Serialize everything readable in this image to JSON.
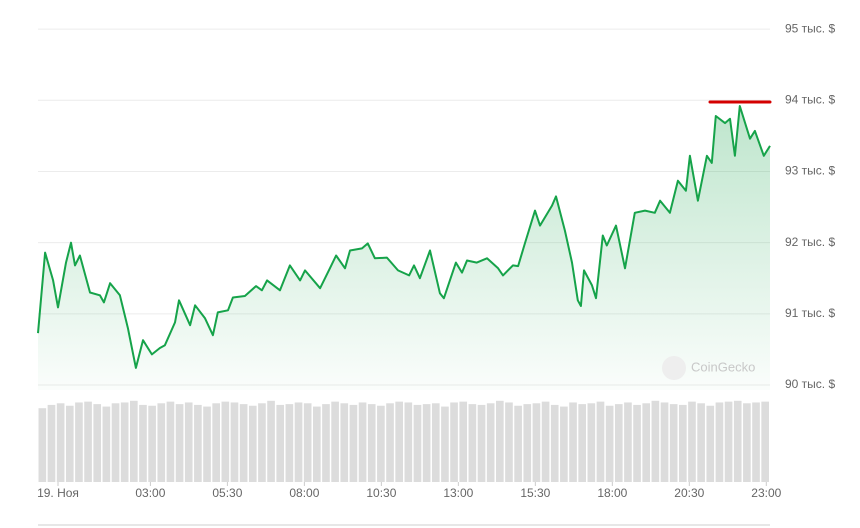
{
  "chart_data": {
    "type": "line",
    "color": "#16a34a",
    "watermark": "CoinGecko",
    "x": [
      -0.65,
      -0.42,
      -0.16,
      0,
      0.26,
      0.42,
      0.55,
      0.71,
      1.04,
      1.36,
      1.49,
      1.69,
      2.01,
      2.27,
      2.53,
      2.76,
      3.05,
      3.31,
      3.47,
      3.8,
      3.93,
      4.29,
      4.45,
      4.77,
      5.03,
      5.19,
      5.52,
      5.68,
      6.07,
      6.43,
      6.62,
      6.79,
      7.21,
      7.53,
      7.86,
      8.02,
      8.51,
      8.83,
      9.03,
      9.32,
      9.48,
      9.87,
      10.06,
      10.29,
      10.68,
      11.04,
      11.4,
      11.56,
      11.75,
      12.08,
      12.4,
      12.53,
      12.92,
      13.12,
      13.28,
      13.6,
      13.93,
      14.29,
      14.45,
      14.77,
      14.94,
      15.16,
      15.49,
      15.65,
      16.04,
      16.17,
      16.46,
      16.69,
      16.88,
      16.98,
      17.08,
      17.34,
      17.47,
      17.69,
      17.82,
      18.12,
      18.41,
      18.73,
      19.06,
      19.38,
      19.55,
      19.87,
      20.13,
      20.39,
      20.52,
      20.78,
      21.07,
      21.23,
      21.36,
      21.66,
      21.82,
      21.98,
      22.14,
      22.47,
      22.63,
      22.92,
      23.12
    ],
    "values": [
      90730,
      91860,
      91470,
      91090,
      91720,
      92000,
      91680,
      91820,
      91300,
      91260,
      91160,
      91430,
      91260,
      90800,
      90240,
      90630,
      90430,
      90520,
      90560,
      90880,
      91190,
      90840,
      91120,
      90940,
      90700,
      91020,
      91050,
      91230,
      91250,
      91390,
      91330,
      91470,
      91330,
      91680,
      91470,
      91610,
      91360,
      91640,
      91820,
      91640,
      91890,
      91920,
      91990,
      91780,
      91790,
      91610,
      91540,
      91680,
      91500,
      91890,
      91290,
      91220,
      91720,
      91580,
      91750,
      91720,
      91780,
      91640,
      91540,
      91680,
      91670,
      91990,
      92450,
      92240,
      92520,
      92650,
      92170,
      91720,
      91190,
      91110,
      91610,
      91400,
      91220,
      92100,
      91960,
      92240,
      91640,
      92420,
      92450,
      92420,
      92590,
      92420,
      92870,
      92730,
      93220,
      92590,
      93220,
      93120,
      93780,
      93680,
      93740,
      93220,
      93920,
      93460,
      93570,
      93220,
      93360
    ],
    "xlim": [
      -0.65,
      23.12
    ],
    "xticks": [
      {
        "value": 0,
        "label": "19. Ноя"
      },
      {
        "value": 3,
        "label": "03:00"
      },
      {
        "value": 5.5,
        "label": "05:30"
      },
      {
        "value": 8,
        "label": "08:00"
      },
      {
        "value": 10.5,
        "label": "10:30"
      },
      {
        "value": 13,
        "label": "13:00"
      },
      {
        "value": 15.5,
        "label": "15:30"
      },
      {
        "value": 18,
        "label": "18:00"
      },
      {
        "value": 20.5,
        "label": "20:30"
      },
      {
        "value": 23,
        "label": "23:00"
      }
    ],
    "ylim": [
      89930,
      95100
    ],
    "yticks": [
      {
        "value": 90000,
        "label": "90 тыс. $"
      },
      {
        "value": 91000,
        "label": "91 тыс. $"
      },
      {
        "value": 92000,
        "label": "92 тыс. $"
      },
      {
        "value": 93000,
        "label": "93 тыс. $"
      },
      {
        "value": 94000,
        "label": "94 тыс. $"
      },
      {
        "value": 95000,
        "label": "95 тыс. $"
      }
    ],
    "grid": true,
    "volume": {
      "color": "#dcdcdc",
      "ylim": [
        0,
        100
      ],
      "values": [
        90,
        94,
        96,
        93,
        97,
        98,
        95,
        92,
        96,
        97,
        99,
        94,
        93,
        96,
        98,
        95,
        97,
        94,
        92,
        96,
        98,
        97,
        95,
        93,
        96,
        99,
        94,
        95,
        97,
        96,
        92,
        95,
        98,
        96,
        94,
        97,
        95,
        93,
        96,
        98,
        97,
        94,
        95,
        96,
        92,
        97,
        98,
        95,
        94,
        96,
        99,
        97,
        93,
        95,
        96,
        98,
        94,
        92,
        97,
        95,
        96,
        98,
        93,
        95,
        97,
        94,
        96,
        99,
        97,
        95,
        94,
        98,
        96,
        93,
        97,
        98,
        99,
        96,
        97,
        98
      ]
    }
  }
}
